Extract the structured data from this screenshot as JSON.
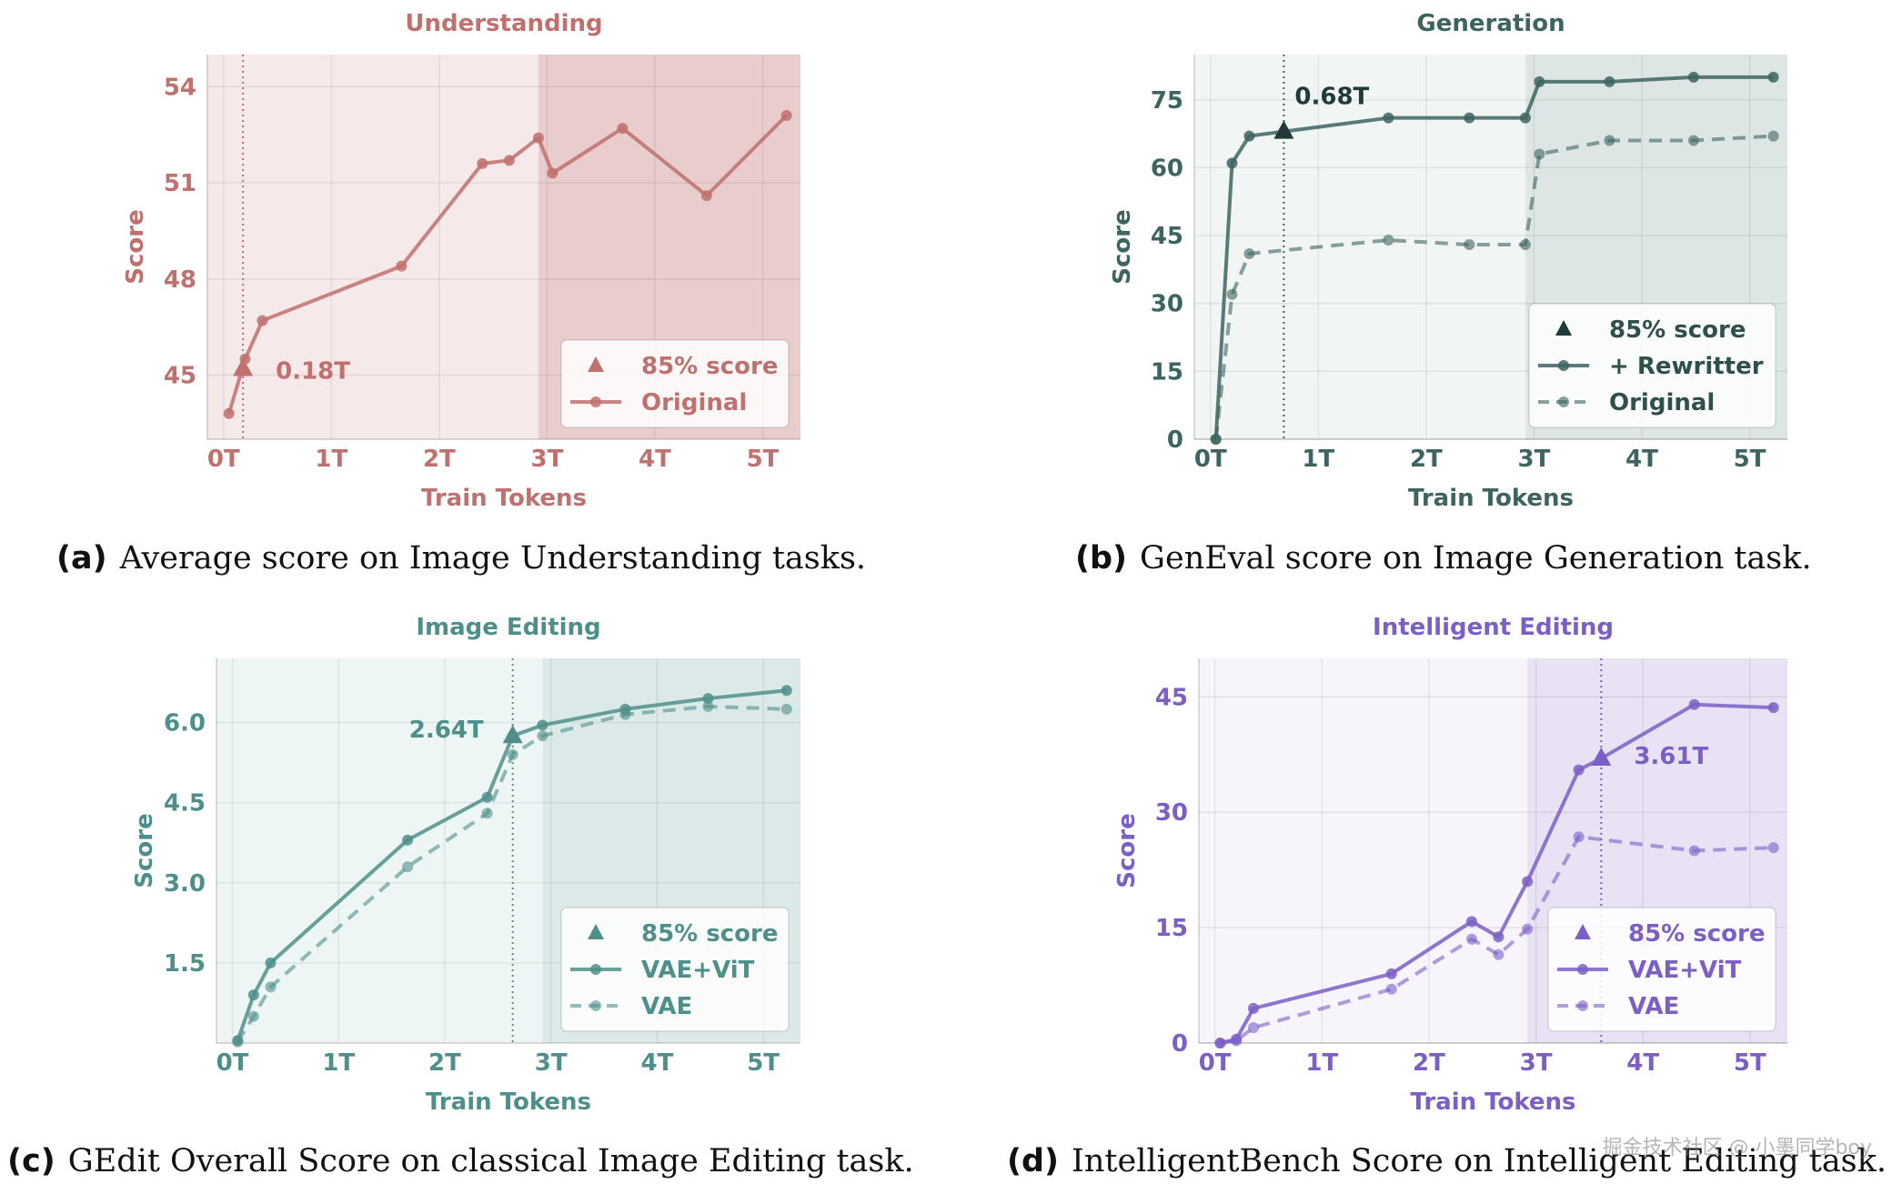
{
  "chart_data": [
    {
      "type": "line",
      "title": "Understanding",
      "xlabel": "Train Tokens",
      "ylabel": "Score",
      "x_ticks": [
        "0T",
        "1T",
        "2T",
        "3T",
        "4T",
        "5T"
      ],
      "y_ticks": [
        "45",
        "48",
        "51",
        "54"
      ],
      "xlim": [
        -0.15,
        5.35
      ],
      "ylim": [
        43.0,
        55.0
      ],
      "grid": true,
      "legend": "bottom-right",
      "color": "#c0706e",
      "shade_light": "#f6e9e9",
      "shade_dark": "#e9cccc",
      "shade_split": 2.92,
      "threshold_x": 0.18,
      "threshold_label": "0.18T",
      "series": [
        {
          "name": "Original",
          "style": "solid",
          "x": [
            0.05,
            0.2,
            0.36,
            1.65,
            2.4,
            2.65,
            2.92,
            3.05,
            3.7,
            4.48,
            5.22
          ],
          "y": [
            43.8,
            45.5,
            46.7,
            48.4,
            51.6,
            51.7,
            52.4,
            51.3,
            52.7,
            50.6,
            53.1
          ]
        }
      ],
      "marker": {
        "x": 0.18,
        "y": 45.2
      },
      "legend_labels": [
        "85% score",
        "Original"
      ],
      "caption_tag": "(a)",
      "caption_text": "Average score on Image Understanding tasks."
    },
    {
      "type": "line",
      "title": "Generation",
      "xlabel": "Train Tokens",
      "ylabel": "Score",
      "x_ticks": [
        "0T",
        "1T",
        "2T",
        "3T",
        "4T",
        "5T"
      ],
      "y_ticks": [
        "0",
        "15",
        "30",
        "45",
        "60",
        "75"
      ],
      "xlim": [
        -0.15,
        5.35
      ],
      "ylim": [
        0,
        85
      ],
      "grid": true,
      "legend": "bottom-right",
      "color": "#3d6461",
      "shade_light": "#f1f5f4",
      "shade_dark": "#dde6e5",
      "shade_split": 2.92,
      "threshold_x": 0.68,
      "threshold_label": "0.68T",
      "series": [
        {
          "name": "+ Rewritter",
          "style": "solid",
          "x": [
            0.05,
            0.2,
            0.36,
            0.68,
            1.65,
            2.4,
            2.92,
            3.05,
            3.7,
            4.48,
            5.22
          ],
          "y": [
            0,
            61,
            67,
            68,
            71,
            71,
            71,
            79,
            79,
            80,
            80
          ]
        },
        {
          "name": "Original",
          "style": "dashed",
          "x": [
            0.05,
            0.2,
            0.36,
            1.65,
            2.4,
            2.92,
            3.05,
            3.7,
            4.48,
            5.22
          ],
          "y": [
            0,
            32,
            41,
            44,
            43,
            43,
            63,
            66,
            66,
            67
          ]
        }
      ],
      "marker": {
        "x": 0.68,
        "y": 68
      },
      "legend_labels": [
        "85% score",
        "+ Rewritter",
        "Original"
      ],
      "caption_tag": "(b)",
      "caption_text": "GenEval score on Image Generation task."
    },
    {
      "type": "line",
      "title": "Image Editing",
      "xlabel": "Train Tokens",
      "ylabel": "Score",
      "x_ticks": [
        "0T",
        "1T",
        "2T",
        "3T",
        "4T",
        "5T"
      ],
      "y_ticks": [
        "1.5",
        "3.0",
        "4.5",
        "6.0"
      ],
      "xlim": [
        -0.15,
        5.35
      ],
      "ylim": [
        0.0,
        7.2
      ],
      "grid": true,
      "legend": "bottom-right",
      "color": "#4f8f8b",
      "shade_light": "#eef5f5",
      "shade_dark": "#dbeae8",
      "shade_split": 2.92,
      "threshold_x": 2.64,
      "threshold_label": "2.64T",
      "series": [
        {
          "name": "VAE+ViT",
          "style": "solid",
          "x": [
            0.05,
            0.2,
            0.36,
            1.65,
            2.4,
            2.64,
            2.92,
            3.7,
            4.48,
            5.22
          ],
          "y": [
            0.05,
            0.9,
            1.5,
            3.8,
            4.6,
            5.75,
            5.95,
            6.25,
            6.45,
            6.6
          ]
        },
        {
          "name": "VAE",
          "style": "dashed",
          "x": [
            0.05,
            0.2,
            0.36,
            1.65,
            2.4,
            2.64,
            2.92,
            3.7,
            4.48,
            5.22
          ],
          "y": [
            0.02,
            0.5,
            1.05,
            3.3,
            4.3,
            5.4,
            5.75,
            6.15,
            6.3,
            6.25
          ]
        }
      ],
      "marker": {
        "x": 2.64,
        "y": 5.75
      },
      "legend_labels": [
        "85% score",
        "VAE+ViT",
        "VAE"
      ],
      "caption_tag": "(c)",
      "caption_text": "GEdit Overall Score on classical Image Editing task."
    },
    {
      "type": "line",
      "title": "Intelligent Editing",
      "xlabel": "Train Tokens",
      "ylabel": "Score",
      "x_ticks": [
        "0T",
        "1T",
        "2T",
        "3T",
        "4T",
        "5T"
      ],
      "y_ticks": [
        "0",
        "15",
        "30",
        "45"
      ],
      "xlim": [
        -0.15,
        5.35
      ],
      "ylim": [
        0,
        50
      ],
      "grid": true,
      "legend": "bottom-right",
      "color": "#7b5fc7",
      "shade_light": "#f7f4fb",
      "shade_dark": "#e8e2f4",
      "shade_split": 2.92,
      "threshold_x": 3.61,
      "threshold_label": "3.61T",
      "series": [
        {
          "name": "VAE+ViT",
          "style": "solid",
          "x": [
            0.05,
            0.2,
            0.36,
            1.65,
            2.4,
            2.65,
            2.92,
            3.4,
            3.61,
            4.48,
            5.22
          ],
          "y": [
            0,
            0.5,
            4.5,
            9,
            15.8,
            13.8,
            21,
            35.5,
            37,
            44,
            43.6
          ]
        },
        {
          "name": "VAE",
          "style": "dashed",
          "x": [
            0.05,
            0.2,
            0.36,
            1.65,
            2.4,
            2.65,
            2.92,
            3.4,
            4.48,
            5.22
          ],
          "y": [
            0,
            0.3,
            2,
            7,
            13.5,
            11.5,
            14.8,
            26.8,
            25,
            25.4
          ]
        }
      ],
      "marker": {
        "x": 3.61,
        "y": 37
      },
      "legend_labels": [
        "85% score",
        "VAE+ViT",
        "VAE"
      ],
      "caption_tag": "(d)",
      "caption_text": "IntelligentBench Score on Intelligent Editing task."
    }
  ],
  "watermark": "掘金技术社区 @ 小墨同学boy"
}
